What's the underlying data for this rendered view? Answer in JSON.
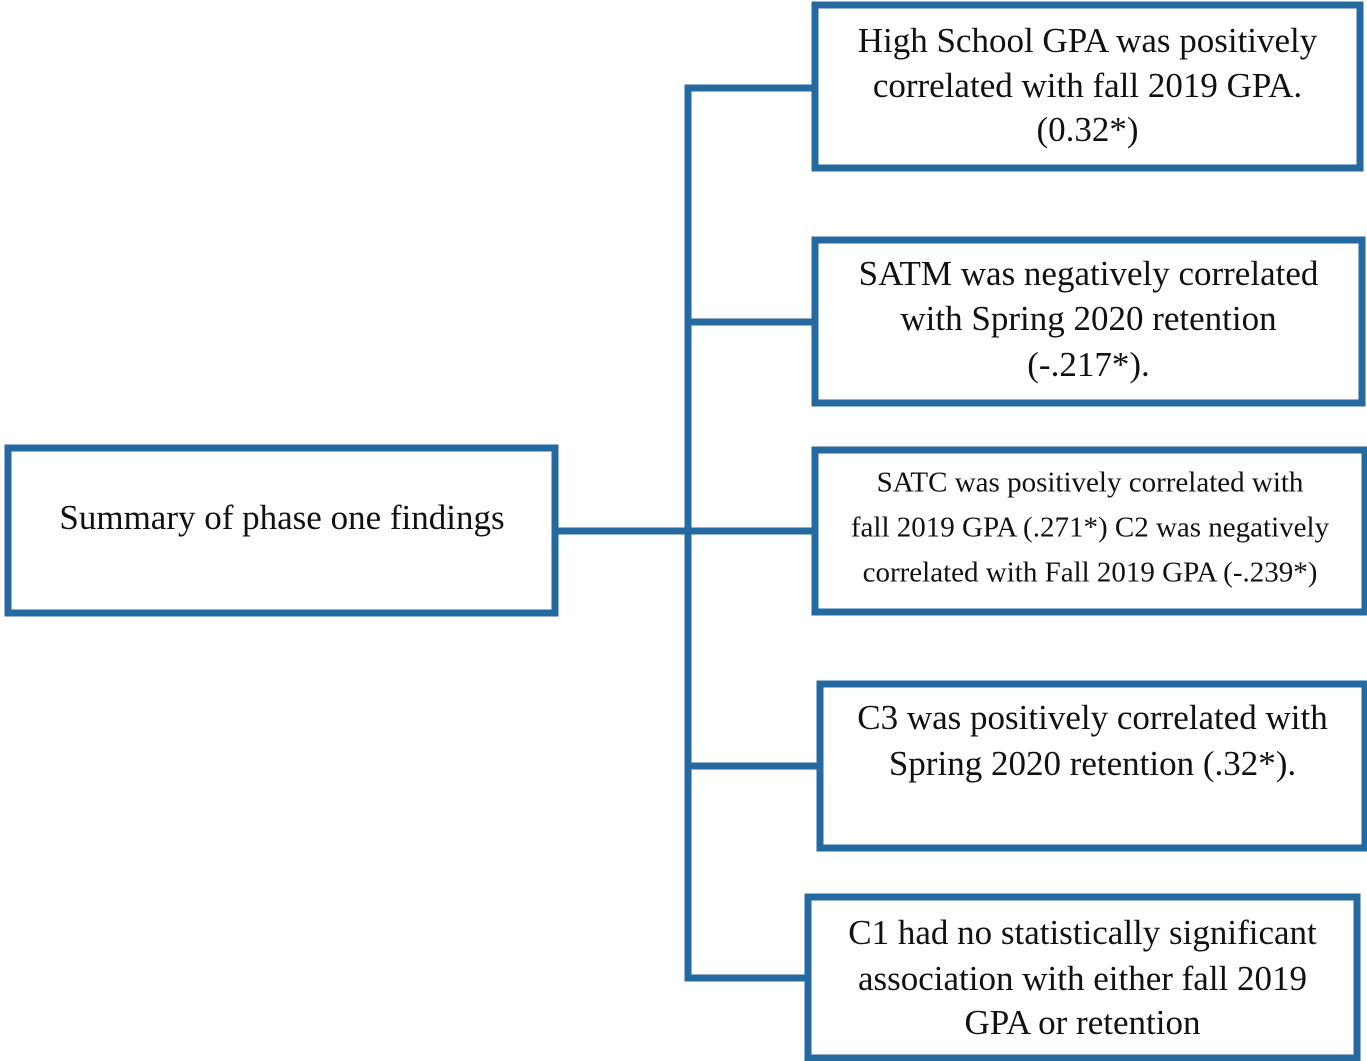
{
  "root": {
    "label": "Summary of phase one findings"
  },
  "nodes": [
    {
      "lines": [
        "High School GPA was positively",
        "correlated with fall 2019 GPA.",
        "(0.32*)"
      ]
    },
    {
      "lines": [
        "SATM was negatively correlated",
        "with Spring 2020 retention",
        "(-.217*)."
      ]
    },
    {
      "lines": [
        "SATC was positively correlated with",
        "fall 2019 GPA (.271*) C2 was negatively",
        "correlated with Fall 2019 GPA (-.239*)"
      ]
    },
    {
      "lines": [
        "C3 was positively correlated with",
        "Spring 2020 retention (.32*)."
      ]
    },
    {
      "lines": [
        "C1 had no statistically significant",
        "association with either fall 2019",
        "GPA or retention"
      ]
    }
  ]
}
